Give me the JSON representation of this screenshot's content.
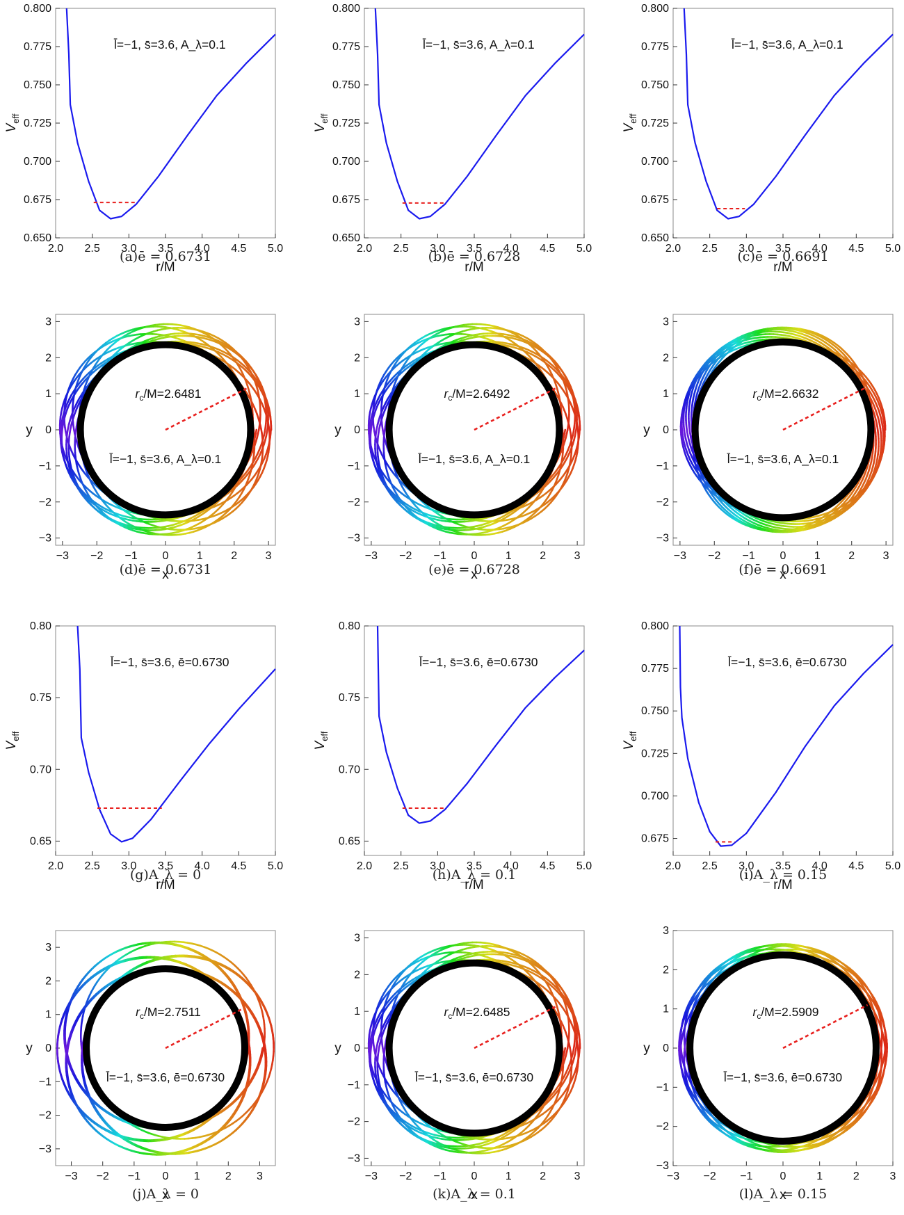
{
  "chart_data": [
    {
      "id": "a",
      "type": "line",
      "caption": "(a)ē = 0.6731",
      "xlabel": "r/M",
      "ylabel": "V_eff",
      "xlim": [
        2.0,
        5.0
      ],
      "ylim": [
        0.65,
        0.8
      ],
      "xticks": [
        "2.0",
        "2.5",
        "3.0",
        "3.5",
        "4.0",
        "4.5",
        "5.0"
      ],
      "yticks": [
        "0.650",
        "0.675",
        "0.700",
        "0.725",
        "0.750",
        "0.775",
        "0.800"
      ],
      "annotation": "l̄=−1, s̄=3.6, A_λ=0.1",
      "series": [
        {
          "x": [
            2.15,
            2.18,
            2.2,
            2.3,
            2.45,
            2.6,
            2.75,
            2.9,
            3.1,
            3.4,
            3.8,
            4.2,
            4.6,
            5.0
          ],
          "y": [
            0.8,
            0.77,
            0.737,
            0.712,
            0.687,
            0.668,
            0.6625,
            0.664,
            0.672,
            0.69,
            0.717,
            0.743,
            0.764,
            0.783
          ]
        }
      ],
      "energy": {
        "value": 0.6731,
        "x1": 2.52,
        "x2": 3.08
      }
    },
    {
      "id": "b",
      "type": "line",
      "caption": "(b)ē = 0.6728",
      "xlabel": "r/M",
      "ylabel": "V_eff",
      "xlim": [
        2.0,
        5.0
      ],
      "ylim": [
        0.65,
        0.8
      ],
      "xticks": [
        "2.0",
        "2.5",
        "3.0",
        "3.5",
        "4.0",
        "4.5",
        "5.0"
      ],
      "yticks": [
        "0.650",
        "0.675",
        "0.700",
        "0.725",
        "0.750",
        "0.775",
        "0.800"
      ],
      "annotation": "l̄=−1, s̄=3.6, A_λ=0.1",
      "series": [
        {
          "x": [
            2.15,
            2.18,
            2.2,
            2.3,
            2.45,
            2.6,
            2.75,
            2.9,
            3.1,
            3.4,
            3.8,
            4.2,
            4.6,
            5.0
          ],
          "y": [
            0.8,
            0.77,
            0.737,
            0.712,
            0.687,
            0.668,
            0.6625,
            0.664,
            0.672,
            0.69,
            0.717,
            0.743,
            0.764,
            0.783
          ]
        }
      ],
      "energy": {
        "value": 0.6728,
        "x1": 2.52,
        "x2": 3.08
      }
    },
    {
      "id": "c",
      "type": "line",
      "caption": "(c)ē = 0.6691",
      "xlabel": "r/M",
      "ylabel": "V_eff",
      "xlim": [
        2.0,
        5.0
      ],
      "ylim": [
        0.65,
        0.8
      ],
      "xticks": [
        "2.0",
        "2.5",
        "3.0",
        "3.5",
        "4.0",
        "4.5",
        "5.0"
      ],
      "yticks": [
        "0.650",
        "0.675",
        "0.700",
        "0.725",
        "0.750",
        "0.775",
        "0.800"
      ],
      "annotation": "l̄=−1, s̄=3.6, A_λ=0.1",
      "series": [
        {
          "x": [
            2.15,
            2.18,
            2.2,
            2.3,
            2.45,
            2.6,
            2.75,
            2.9,
            3.1,
            3.4,
            3.8,
            4.2,
            4.6,
            5.0
          ],
          "y": [
            0.8,
            0.77,
            0.737,
            0.712,
            0.687,
            0.668,
            0.6625,
            0.664,
            0.672,
            0.69,
            0.717,
            0.743,
            0.764,
            0.783
          ]
        }
      ],
      "energy": {
        "value": 0.6691,
        "x1": 2.6,
        "x2": 2.98
      }
    },
    {
      "id": "d",
      "type": "orbit",
      "caption": "(d)ē = 0.6731",
      "xlabel": "x",
      "ylabel": "y",
      "xlim": [
        -3.2,
        3.2
      ],
      "ylim": [
        -3.2,
        3.2
      ],
      "xticks": [
        "−3",
        "−2",
        "−1",
        "0",
        "1",
        "2",
        "3"
      ],
      "yticks": [
        "−3",
        "−2",
        "−1",
        "0",
        "1",
        "2",
        "3"
      ],
      "annotation": "l̄=−1, s̄=3.6, A_λ=0.1",
      "rc_label": "r_c/M=2.6481",
      "rc": 2.6481,
      "r_min": 2.52,
      "r_max": 3.08,
      "lobes": 17
    },
    {
      "id": "e",
      "type": "orbit",
      "caption": "(e)ē = 0.6728",
      "xlabel": "x",
      "ylabel": "y",
      "xlim": [
        -3.2,
        3.2
      ],
      "ylim": [
        -3.2,
        3.2
      ],
      "xticks": [
        "−3",
        "−2",
        "−1",
        "0",
        "1",
        "2",
        "3"
      ],
      "yticks": [
        "−3",
        "−2",
        "−1",
        "0",
        "1",
        "2",
        "3"
      ],
      "annotation": "l̄=−1, s̄=3.6, A_λ=0.1",
      "rc_label": "r_c/M=2.6492",
      "rc": 2.6492,
      "r_min": 2.52,
      "r_max": 3.08,
      "lobes": 17
    },
    {
      "id": "f",
      "type": "orbit",
      "caption": "(f)ē = 0.6691",
      "xlabel": "x",
      "ylabel": "y",
      "xlim": [
        -3.2,
        3.2
      ],
      "ylim": [
        -3.2,
        3.2
      ],
      "xticks": [
        "−3",
        "−2",
        "−1",
        "0",
        "1",
        "2",
        "3"
      ],
      "yticks": [
        "−3",
        "−2",
        "−1",
        "0",
        "1",
        "2",
        "3"
      ],
      "annotation": "l̄=−1, s̄=3.6, A_λ=0.1",
      "rc_label": "r_c/M=2.6632",
      "rc": 2.6632,
      "r_min": 2.6,
      "r_max": 2.98,
      "lobes": 19
    },
    {
      "id": "g",
      "type": "line",
      "caption": "(g)A_λ = 0",
      "xlabel": "r/M",
      "ylabel": "V_eff",
      "xlim": [
        2.0,
        5.0
      ],
      "ylim": [
        0.64,
        0.8
      ],
      "xticks": [
        "2.0",
        "2.5",
        "3.0",
        "3.5",
        "4.0",
        "4.5",
        "5.0"
      ],
      "yticks": [
        "0.65",
        "0.70",
        "0.75",
        "0.80"
      ],
      "annotation": "l̄=−1, s̄=3.6, ē=0.6730",
      "series": [
        {
          "x": [
            2.3,
            2.33,
            2.35,
            2.45,
            2.6,
            2.75,
            2.9,
            3.05,
            3.3,
            3.7,
            4.1,
            4.5,
            5.0
          ],
          "y": [
            0.8,
            0.77,
            0.722,
            0.698,
            0.672,
            0.655,
            0.6495,
            0.652,
            0.665,
            0.692,
            0.718,
            0.742,
            0.77
          ]
        }
      ],
      "energy": {
        "value": 0.673,
        "x1": 2.57,
        "x2": 3.45
      }
    },
    {
      "id": "h",
      "type": "line",
      "caption": "(h)A_λ = 0.1",
      "xlabel": "r/M",
      "ylabel": "V_eff",
      "xlim": [
        2.0,
        5.0
      ],
      "ylim": [
        0.64,
        0.8
      ],
      "xticks": [
        "2.0",
        "2.5",
        "3.0",
        "3.5",
        "4.0",
        "4.5",
        "5.0"
      ],
      "yticks": [
        "0.65",
        "0.70",
        "0.75",
        "0.80"
      ],
      "annotation": "l̄=−1, s̄=3.6, ē=0.6730",
      "series": [
        {
          "x": [
            2.18,
            2.2,
            2.3,
            2.45,
            2.6,
            2.75,
            2.9,
            3.1,
            3.4,
            3.8,
            4.2,
            4.6,
            5.0
          ],
          "y": [
            0.8,
            0.737,
            0.712,
            0.687,
            0.668,
            0.6625,
            0.664,
            0.672,
            0.69,
            0.717,
            0.743,
            0.764,
            0.783
          ]
        }
      ],
      "energy": {
        "value": 0.673,
        "x1": 2.52,
        "x2": 3.08
      }
    },
    {
      "id": "i",
      "type": "line",
      "caption": "(i)A_λ = 0.15",
      "xlabel": "r/M",
      "ylabel": "V_eff",
      "xlim": [
        2.0,
        5.0
      ],
      "ylim": [
        0.665,
        0.8
      ],
      "xticks": [
        "2.0",
        "2.5",
        "3.0",
        "3.5",
        "4.0",
        "4.5",
        "5.0"
      ],
      "yticks": [
        "0.675",
        "0.700",
        "0.725",
        "0.750",
        "0.775",
        "0.800"
      ],
      "annotation": "l̄=−1, s̄=3.6, ē=0.6730",
      "series": [
        {
          "x": [
            2.09,
            2.1,
            2.12,
            2.2,
            2.35,
            2.5,
            2.65,
            2.8,
            3.0,
            3.4,
            3.8,
            4.2,
            4.6,
            5.0
          ],
          "y": [
            0.8,
            0.764,
            0.746,
            0.722,
            0.696,
            0.679,
            0.6705,
            0.671,
            0.678,
            0.702,
            0.729,
            0.753,
            0.772,
            0.789
          ]
        }
      ],
      "energy": {
        "value": 0.673,
        "x1": 2.58,
        "x2": 2.84
      }
    },
    {
      "id": "j",
      "type": "orbit",
      "caption": "(j)A_λ = 0",
      "xlabel": "x",
      "ylabel": "y",
      "xlim": [
        -3.5,
        3.5
      ],
      "ylim": [
        -3.5,
        3.5
      ],
      "xticks": [
        "−3",
        "−2",
        "−1",
        "0",
        "1",
        "2",
        "3"
      ],
      "yticks": [
        "−3",
        "−2",
        "−1",
        "0",
        "1",
        "2",
        "3"
      ],
      "annotation": "l̄=−1, s̄=3.6, ē=0.6730",
      "rc_label": "r_c/M=2.7511",
      "rc": 2.7511,
      "r_min": 2.57,
      "r_max": 3.45,
      "lobes": 11
    },
    {
      "id": "k",
      "type": "orbit",
      "caption": "(k)A_λ = 0.1",
      "xlabel": "x",
      "ylabel": "y",
      "xlim": [
        -3.2,
        3.2
      ],
      "ylim": [
        -3.2,
        3.2
      ],
      "xticks": [
        "−3",
        "−2",
        "−1",
        "0",
        "1",
        "2",
        "3"
      ],
      "yticks": [
        "−3",
        "−2",
        "−1",
        "0",
        "1",
        "2",
        "3"
      ],
      "annotation": "l̄=−1, s̄=3.6, ē=0.6730",
      "rc_label": "r_c/M=2.6485",
      "rc": 2.6485,
      "r_min": 2.52,
      "r_max": 3.08,
      "lobes": 17
    },
    {
      "id": "l",
      "type": "orbit",
      "caption": "(l)A_λ = 0.15",
      "xlabel": "x",
      "ylabel": "y",
      "xlim": [
        -3.0,
        3.0
      ],
      "ylim": [
        -3.0,
        3.0
      ],
      "xticks": [
        "−3",
        "−2",
        "−1",
        "0",
        "1",
        "2",
        "3"
      ],
      "yticks": [
        "−3",
        "−2",
        "−1",
        "0",
        "1",
        "2",
        "3"
      ],
      "annotation": "l̄=−1, s̄=3.6, ē=0.6730",
      "rc_label": "r_c/M=2.5909",
      "rc": 2.5909,
      "r_min": 2.58,
      "r_max": 2.84,
      "lobes": 21
    }
  ],
  "colors": {
    "potential": "#1a1aee",
    "energy": "#e8201e",
    "rc_line": "#e8201e",
    "horizon": "#000000"
  }
}
